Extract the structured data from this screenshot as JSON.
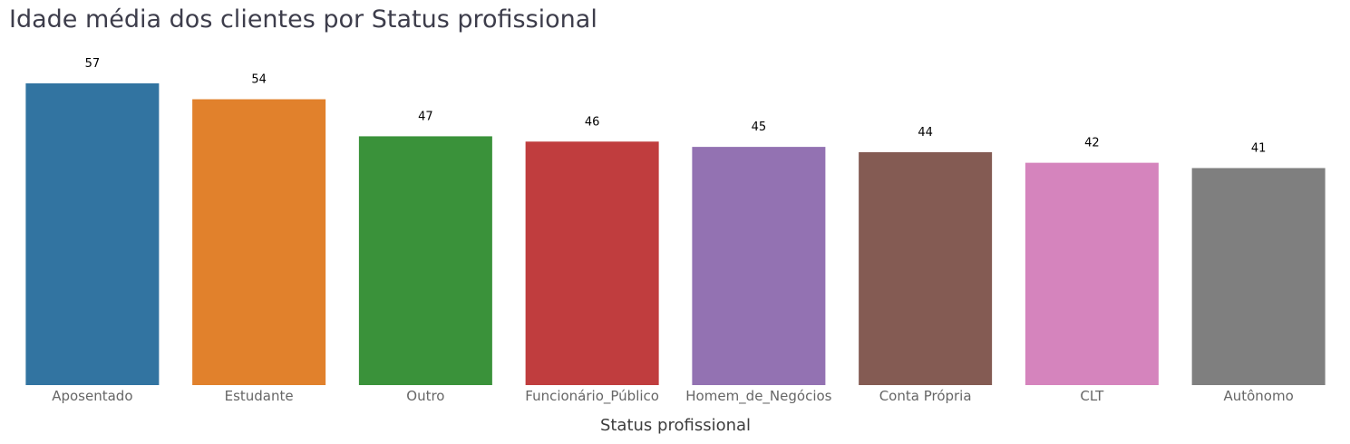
{
  "chart_data": {
    "type": "bar",
    "title": "Idade média dos clientes por Status profissional",
    "xlabel": "Status profissional",
    "ylabel": "",
    "categories": [
      "Aposentado",
      "Estudante",
      "Outro",
      "Funcionário_Público",
      "Homem_de_Negócios",
      "Conta Própria",
      "CLT",
      "Autônomo"
    ],
    "values": [
      57,
      54,
      47,
      46,
      45,
      44,
      42,
      41
    ],
    "data_labels": [
      "57",
      "54",
      "47",
      "46",
      "45",
      "44",
      "42",
      "41"
    ],
    "colors": [
      "#3274a1",
      "#e1812c",
      "#3a923a",
      "#c03d3e",
      "#9372b2",
      "#845b53",
      "#d584bd",
      "#7f7f7f"
    ],
    "ylim": [
      0,
      57
    ],
    "grid": false,
    "legend": "none"
  }
}
